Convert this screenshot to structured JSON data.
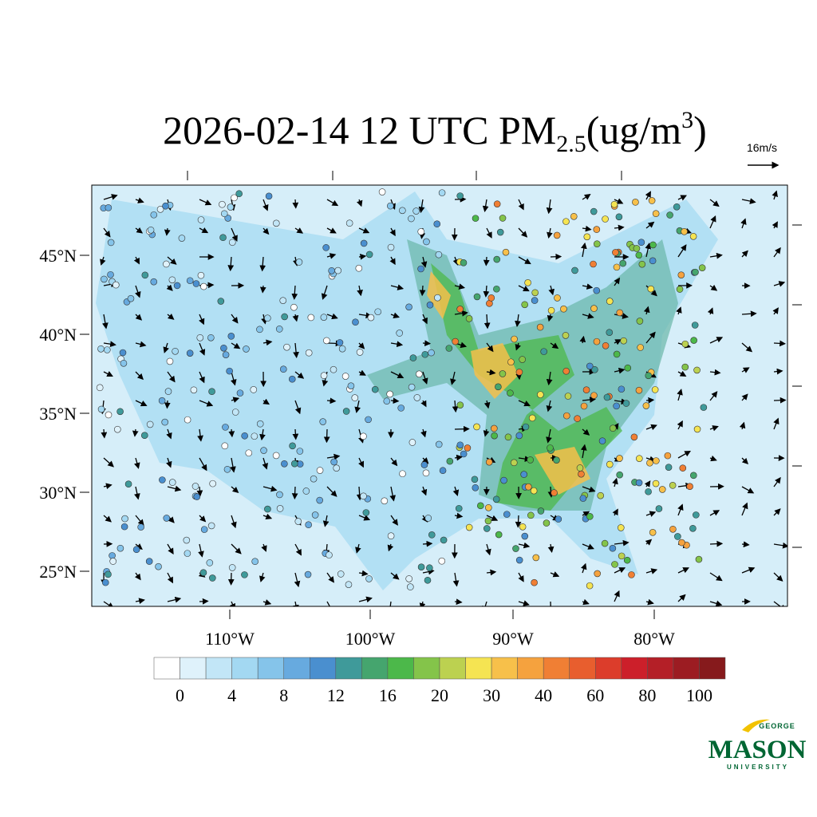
{
  "title": {
    "prefix": "2026-02-14 12 UTC PM",
    "sub": "2.5",
    "unit": "(ug/m",
    "sup": "3",
    "close": ")"
  },
  "vector_reference": "16m/s",
  "latitude_labels": [
    "45°N",
    "40°N",
    "35°N",
    "30°N",
    "25°N"
  ],
  "longitude_labels": [
    "110°W",
    "100°W",
    "90°W",
    "80°W"
  ],
  "colorbar": {
    "labels": [
      0,
      4,
      8,
      12,
      16,
      20,
      30,
      40,
      60,
      80,
      100
    ],
    "colors": [
      "#ffffff",
      "#dff2fb",
      "#c2e6f7",
      "#a3d8f2",
      "#85c4ea",
      "#67aadf",
      "#4a8fcf",
      "#3f9a9a",
      "#45a56e",
      "#4cb84a",
      "#84c44a",
      "#bcd150",
      "#f5e452",
      "#f7c04a",
      "#f5a23e",
      "#f07f34",
      "#e85e2e",
      "#dc3d2b",
      "#cc1f2a",
      "#b41f27",
      "#9c1c22",
      "#861a1c"
    ]
  },
  "logo": {
    "top": "GEORGE",
    "main": "MASON",
    "bottom": "UNIVERSITY"
  }
}
